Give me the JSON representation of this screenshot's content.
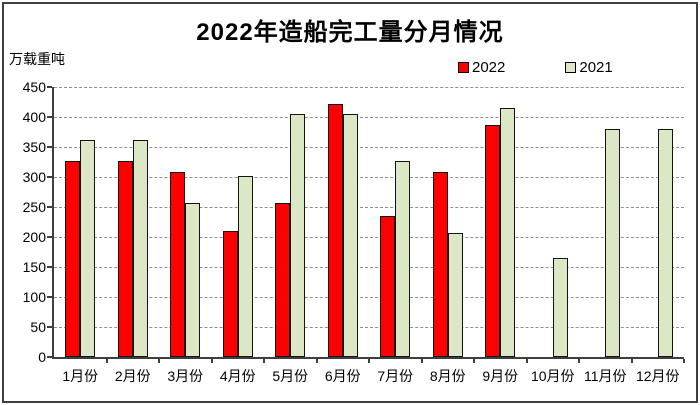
{
  "chart_data": {
    "type": "bar",
    "title": "2022年造船完工量分月情况",
    "ylabel": "万载重吨",
    "xlabel": "",
    "categories": [
      "1月份",
      "2月份",
      "3月份",
      "4月份",
      "5月份",
      "6月份",
      "7月份",
      "8月份",
      "9月份",
      "10月份",
      "11月份",
      "12月份"
    ],
    "series": [
      {
        "name": "2022",
        "color": "#FF0000",
        "values": [
          327,
          327,
          308,
          210,
          256,
          422,
          235,
          308,
          386,
          null,
          null,
          null
        ]
      },
      {
        "name": "2021",
        "color": "#DCE8C5",
        "values": [
          361,
          361,
          256,
          302,
          405,
          405,
          326,
          206,
          415,
          165,
          380,
          380
        ]
      }
    ],
    "ylim": [
      0,
      450
    ],
    "yticks": [
      0,
      50,
      100,
      150,
      200,
      250,
      300,
      350,
      400,
      450
    ],
    "grid": true,
    "legend_position": "top-right"
  },
  "colors": {
    "axis": "#3f3f3f",
    "grid": "#8f8f8f",
    "frame": "#3f3f3f",
    "background": "#FFFFFF",
    "bar_border": "#141414"
  }
}
